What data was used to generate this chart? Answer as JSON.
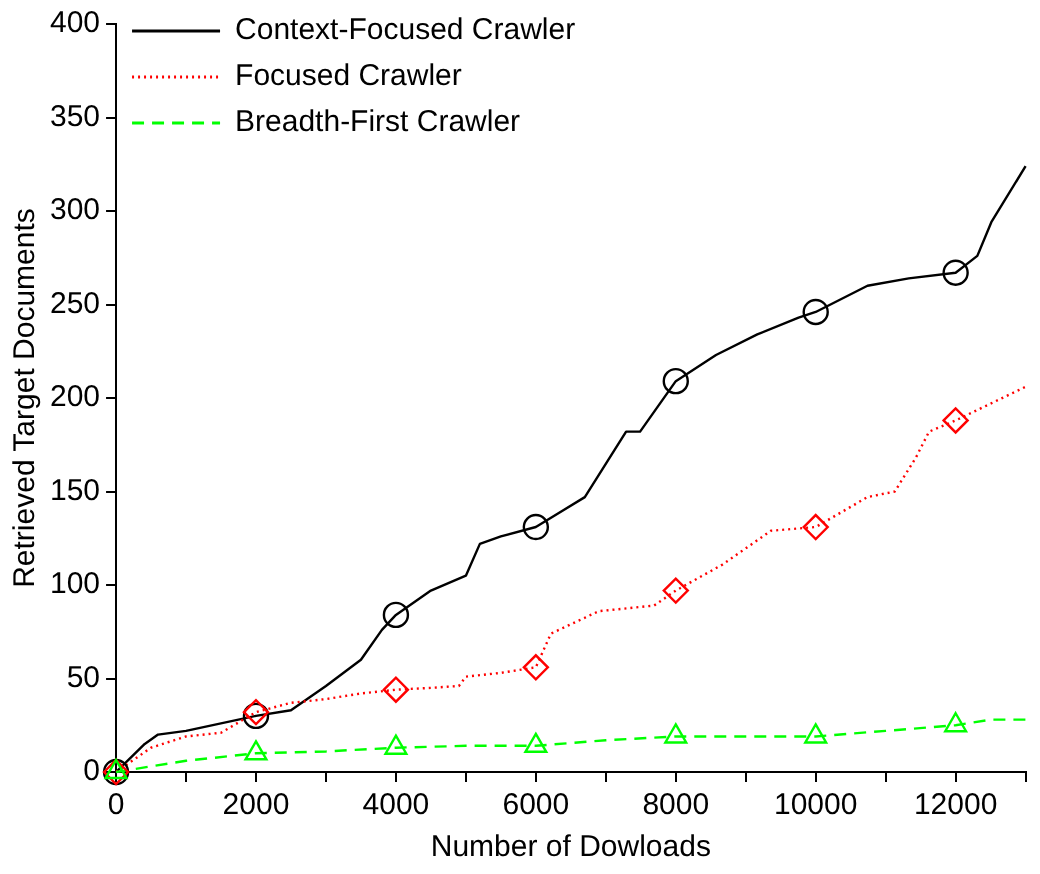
{
  "chart_data": {
    "type": "line",
    "xlabel": "Number of Dowloads",
    "ylabel": "Retrieved Target Documents",
    "xlim": [
      0,
      13000
    ],
    "ylim": [
      0,
      400
    ],
    "xticks": [
      0,
      {
        "value": 1000,
        "label": null
      },
      2000,
      {
        "value": 3000,
        "label": null
      },
      4000,
      {
        "value": 5000,
        "label": null
      },
      6000,
      {
        "value": 7000,
        "label": null
      },
      8000,
      {
        "value": 9000,
        "label": null
      },
      10000,
      {
        "value": 11000,
        "label": null
      },
      12000,
      {
        "value": 13000,
        "label": null
      }
    ],
    "yticks": [
      0,
      50,
      100,
      150,
      200,
      250,
      300,
      350,
      400
    ],
    "grid": false,
    "legend": "top left",
    "tick_labels": "xy",
    "series": [
      {
        "name": "Context-Focused Crawler",
        "color": "#000000",
        "marker": "none",
        "line_style": "solid",
        "x": [
          0,
          410,
          600,
          1000,
          2000,
          2500,
          3000,
          3500,
          3800,
          4000,
          4500,
          5000,
          5200,
          5500,
          6000,
          6700,
          7290,
          7490,
          8000,
          8575,
          9165,
          9755,
          10000,
          10740,
          11330,
          12000,
          12310,
          12510,
          13000
        ],
        "values": [
          0,
          15,
          20,
          22,
          30,
          33,
          46,
          60,
          76,
          84,
          97,
          105,
          122,
          126,
          131,
          147,
          182,
          182,
          209,
          223,
          234,
          243,
          246,
          260,
          264,
          267,
          276,
          294,
          324
        ]
      },
      {
        "name": "Focused Crawler",
        "color": "#ff0000",
        "marker": "none",
        "line_style": "dotted",
        "x": [
          0,
          500,
          1000,
          1500,
          2000,
          2500,
          3000,
          3500,
          4000,
          4500,
          4900,
          5000,
          5500,
          6000,
          6215,
          6900,
          7690,
          8000,
          8670,
          9360,
          10000,
          10740,
          11130,
          11430,
          11620,
          12000,
          13000
        ],
        "values": [
          0,
          13,
          19,
          21,
          32,
          37,
          39,
          42,
          44,
          45,
          46,
          51,
          53,
          56,
          74,
          86,
          89,
          97,
          111,
          129,
          131,
          147,
          150,
          168,
          182,
          188,
          206
        ]
      },
      {
        "name": "Breadth-First Crawler",
        "color": "#00ff00",
        "marker": "none",
        "line_style": "dashed",
        "x": [
          0,
          1000,
          2000,
          3000,
          4000,
          5000,
          6000,
          7000,
          8000,
          9000,
          10000,
          11000,
          12000,
          12500,
          13000
        ],
        "values": [
          0,
          6,
          10,
          11,
          13,
          14,
          14,
          17,
          19,
          19,
          19,
          22,
          25,
          28,
          28
        ]
      },
      {
        "type": "scatter",
        "color": "#000000",
        "marker": "circle",
        "x": [
          0,
          2000,
          4000,
          6000,
          8000,
          10000,
          12000
        ],
        "values": [
          0,
          30,
          84,
          131,
          209,
          246,
          267
        ]
      },
      {
        "type": "scatter",
        "color": "#ff0000",
        "marker": "diamond",
        "x": [
          0,
          2000,
          4000,
          6000,
          8000,
          10000,
          12000
        ],
        "values": [
          0,
          32,
          44,
          56,
          97,
          131,
          188
        ]
      },
      {
        "type": "scatter",
        "color": "#00ff00",
        "marker": "triangle",
        "x": [
          0,
          2000,
          4000,
          6000,
          8000,
          10000,
          12000
        ],
        "values": [
          0,
          10,
          13,
          14,
          19,
          19,
          25
        ]
      }
    ]
  }
}
